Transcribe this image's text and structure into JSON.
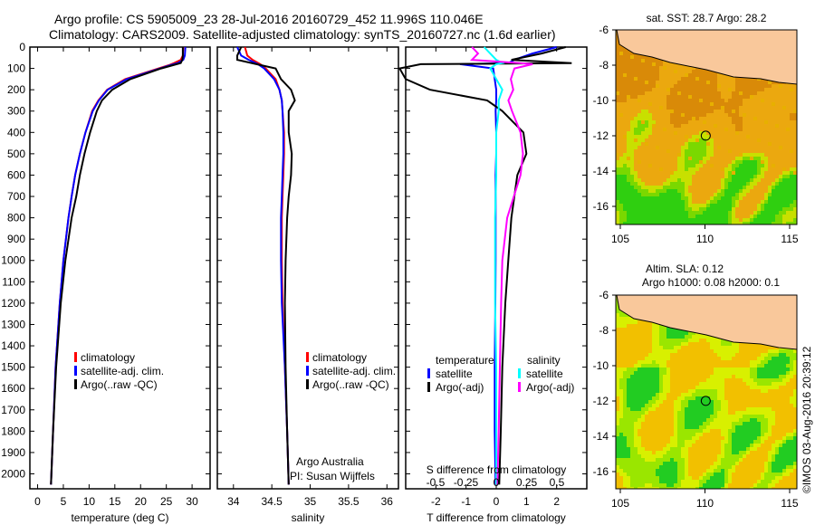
{
  "header": {
    "line1": "Argo profile: CS 5905009_23 28-Jul-2016 20160729_452 11.996S 110.046E",
    "line2": "Climatology: CARS2009. Satellite-adjusted climatology: synTS_20160727.nc (1.6d earlier)"
  },
  "colors": {
    "clim": "#ff0000",
    "sat": "#0000ff",
    "argo": "#000000",
    "sat_s": "#00ffff",
    "argo_s": "#ff00ff",
    "land": "#f9c89b"
  },
  "chart_data": [
    {
      "type": "line",
      "name": "temperature",
      "xlabel": "temperature (deg C)",
      "xlim": [
        -1.5,
        33.5
      ],
      "xticks": [
        0,
        5,
        10,
        15,
        20,
        25,
        30
      ],
      "ylim": [
        0,
        2070
      ],
      "yticks": [
        0,
        100,
        200,
        300,
        400,
        500,
        600,
        700,
        800,
        900,
        1000,
        1100,
        1200,
        1300,
        1400,
        1500,
        1600,
        1700,
        1800,
        1900,
        2000
      ],
      "legend": [
        "climatology",
        "satellite-adj. clim.",
        "Argo(..raw -QC)"
      ],
      "depth": [
        0,
        40,
        60,
        75,
        85,
        100,
        150,
        200,
        250,
        300,
        400,
        500,
        600,
        700,
        800,
        1000,
        1200,
        1500,
        1800,
        2050
      ],
      "series": [
        {
          "name": "climatology",
          "color": "clim",
          "values": [
            28.3,
            28.2,
            27.8,
            26.5,
            25.5,
            23.5,
            17,
            13.5,
            11.8,
            10.6,
            9.3,
            8.2,
            7.3,
            6.6,
            6.0,
            5.0,
            4.3,
            3.5,
            3.0,
            2.6
          ]
        },
        {
          "name": "satellite-adj. clim.",
          "color": "sat",
          "values": [
            28.7,
            28.6,
            28.3,
            27.2,
            25.8,
            23.8,
            17.3,
            13.6,
            11.9,
            10.7,
            9.3,
            8.2,
            7.3,
            6.6,
            6.0,
            5.0,
            4.3,
            3.5,
            3.0,
            2.6
          ]
        },
        {
          "name": "Argo",
          "color": "argo",
          "values": [
            28.2,
            28.2,
            28.1,
            27.8,
            26.3,
            24,
            18,
            14.5,
            12.5,
            11.5,
            10.2,
            9.1,
            8.2,
            7.5,
            6.6,
            5.4,
            4.5,
            3.6,
            3.0,
            2.6
          ]
        }
      ]
    },
    {
      "type": "line",
      "name": "salinity",
      "xlabel": "salinity",
      "xlim": [
        33.79,
        36.15
      ],
      "xticks": [
        34,
        34.5,
        35,
        35.5,
        36
      ],
      "ylim": [
        0,
        2070
      ],
      "legend": [
        "climatology",
        "satellite-adj. clim.",
        "Argo(..raw -QC)"
      ],
      "annotation": [
        "Argo Australia",
        "PI: Susan Wijffels"
      ],
      "depth": [
        0,
        40,
        60,
        80,
        100,
        150,
        200,
        250,
        300,
        400,
        500,
        600,
        700,
        800,
        1000,
        1200,
        1500,
        1800,
        2050
      ],
      "series": [
        {
          "name": "climatology",
          "color": "clim",
          "values": [
            34.15,
            34.18,
            34.25,
            34.35,
            34.42,
            34.55,
            34.6,
            34.63,
            34.64,
            34.66,
            34.66,
            34.65,
            34.64,
            34.63,
            34.63,
            34.64,
            34.67,
            34.7,
            34.72
          ]
        },
        {
          "name": "satellite-adj. clim.",
          "color": "sat",
          "values": [
            34.05,
            34.1,
            34.2,
            34.32,
            34.4,
            34.53,
            34.6,
            34.63,
            34.64,
            34.65,
            34.65,
            34.64,
            34.63,
            34.62,
            34.62,
            34.63,
            34.67,
            34.7,
            34.72
          ]
        },
        {
          "name": "Argo",
          "color": "argo",
          "values": [
            34.1,
            34.05,
            34.05,
            34.3,
            34.55,
            34.62,
            34.75,
            34.8,
            34.72,
            34.72,
            34.76,
            34.75,
            34.72,
            34.7,
            34.68,
            34.67,
            34.68,
            34.7,
            34.72
          ]
        }
      ]
    },
    {
      "type": "line",
      "name": "difference",
      "xlabel": "T difference from climatology",
      "x2label": "S difference from climatology",
      "xlim": [
        -3,
        3
      ],
      "xticks": [
        -2,
        -1,
        0,
        1,
        2
      ],
      "x2ticks": [
        -0.5,
        -0.25,
        0,
        0.25,
        0.5
      ],
      "legend_t": {
        "title": "temperature",
        "items": [
          "satellite",
          "Argo(-adj)"
        ]
      },
      "legend_s": {
        "title": "salinity",
        "items": [
          "satellite",
          "Argo(-adj)"
        ]
      },
      "depth": [
        0,
        30,
        60,
        75,
        80,
        100,
        150,
        200,
        250,
        300,
        400,
        500,
        600,
        800,
        1000,
        1200,
        1500,
        1800,
        2050
      ],
      "series": [
        {
          "name": "T satellite",
          "color": "sat",
          "values": [
            2.0,
            1.2,
            0.6,
            0.4,
            -1.2,
            -0.1,
            -0.05,
            0,
            0,
            -0.02,
            0,
            0,
            -0.02,
            -0.02,
            -0.02,
            -0.03,
            -0.05,
            -0.05,
            -0.02
          ]
        },
        {
          "name": "T Argo(-adj)",
          "color": "argo",
          "values": [
            2.3,
            1.5,
            0.5,
            2.5,
            -2.5,
            -3.2,
            -3,
            -2.2,
            -0.3,
            0.2,
            0.9,
            1.0,
            0.7,
            0.5,
            0.4,
            0.3,
            0.2,
            0.15,
            0.1
          ]
        },
        {
          "name": "S satellite",
          "color": "sat_s",
          "values": [
            -0.1,
            -0.05,
            0,
            0.05,
            0.0,
            -0.05,
            0,
            0.05,
            0.02,
            0.02,
            0,
            0,
            0,
            -0.01,
            -0.01,
            -0.01,
            0,
            0,
            0
          ]
        },
        {
          "name": "S Argo(-adj)",
          "color": "argo_s",
          "values": [
            -0.2,
            -0.15,
            -0.2,
            0.2,
            0.3,
            0.15,
            0.12,
            0.14,
            0.1,
            0.13,
            0.2,
            0.22,
            0.2,
            0.09,
            0.05,
            0.04,
            0.03,
            0.02,
            0.01
          ]
        }
      ]
    },
    {
      "type": "heatmap",
      "name": "sst-map",
      "title": "sat. SST: 28.7 Argo: 28.2",
      "xticks": [
        105,
        110,
        115
      ],
      "yticks": [
        -6,
        -8,
        -10,
        -12,
        -14,
        -16
      ],
      "marker": [
        110.046,
        -11.996
      ]
    },
    {
      "type": "heatmap",
      "name": "sla-map",
      "title1": "Altim. SLA: 0.12",
      "title2": "Argo h1000: 0.08 h2000: 0.1",
      "xticks": [
        105,
        110,
        115
      ],
      "yticks": [
        -6,
        -8,
        -10,
        -12,
        -14,
        -16
      ],
      "marker": [
        110.046,
        -11.996
      ]
    }
  ],
  "footer": {
    "copyright": "©IMOS 03-Aug-2016 20:39:12"
  }
}
